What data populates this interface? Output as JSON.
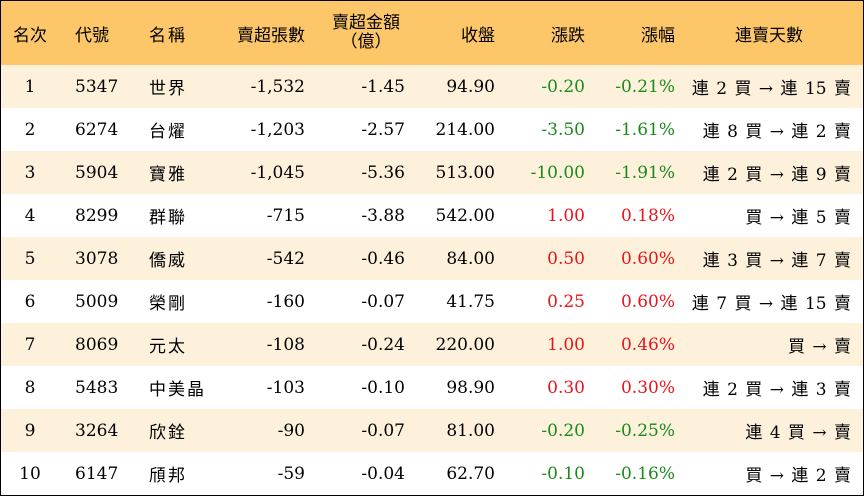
{
  "table": {
    "headers": {
      "rank": "名次",
      "code": "代號",
      "name": "名稱",
      "net_shares": "賣超張數",
      "net_amount_line1": "賣超金額",
      "net_amount_line2": "（億）",
      "close": "收盤",
      "change": "漲跌",
      "change_pct": "漲幅",
      "streak": "連賣天數"
    },
    "rows": [
      {
        "rank": "1",
        "code": "5347",
        "name": "世界",
        "net_shares": "-1,532",
        "net_amount": "-1.45",
        "close": "94.90",
        "change": "-0.20",
        "change_pct": "-0.21%",
        "trend": "neg",
        "streak": "連 2 買 → 連 15 賣"
      },
      {
        "rank": "2",
        "code": "6274",
        "name": "台燿",
        "net_shares": "-1,203",
        "net_amount": "-2.57",
        "close": "214.00",
        "change": "-3.50",
        "change_pct": "-1.61%",
        "trend": "neg",
        "streak": "連 8 買 → 連 2 賣"
      },
      {
        "rank": "3",
        "code": "5904",
        "name": "寶雅",
        "net_shares": "-1,045",
        "net_amount": "-5.36",
        "close": "513.00",
        "change": "-10.00",
        "change_pct": "-1.91%",
        "trend": "neg",
        "streak": "連 2 買 → 連 9 賣"
      },
      {
        "rank": "4",
        "code": "8299",
        "name": "群聯",
        "net_shares": "-715",
        "net_amount": "-3.88",
        "close": "542.00",
        "change": "1.00",
        "change_pct": "0.18%",
        "trend": "pos",
        "streak": "買 → 連 5 賣"
      },
      {
        "rank": "5",
        "code": "3078",
        "name": "僑威",
        "net_shares": "-542",
        "net_amount": "-0.46",
        "close": "84.00",
        "change": "0.50",
        "change_pct": "0.60%",
        "trend": "pos",
        "streak": "連 3 買 → 連 7 賣"
      },
      {
        "rank": "6",
        "code": "5009",
        "name": "榮剛",
        "net_shares": "-160",
        "net_amount": "-0.07",
        "close": "41.75",
        "change": "0.25",
        "change_pct": "0.60%",
        "trend": "pos",
        "streak": "連 7 買 → 連 15 賣"
      },
      {
        "rank": "7",
        "code": "8069",
        "name": "元太",
        "net_shares": "-108",
        "net_amount": "-0.24",
        "close": "220.00",
        "change": "1.00",
        "change_pct": "0.46%",
        "trend": "pos",
        "streak": "買 → 賣"
      },
      {
        "rank": "8",
        "code": "5483",
        "name": "中美晶",
        "net_shares": "-103",
        "net_amount": "-0.10",
        "close": "98.90",
        "change": "0.30",
        "change_pct": "0.30%",
        "trend": "pos",
        "streak": "連 2 買 → 連 3 賣"
      },
      {
        "rank": "9",
        "code": "3264",
        "name": "欣銓",
        "net_shares": "-90",
        "net_amount": "-0.07",
        "close": "81.00",
        "change": "-0.20",
        "change_pct": "-0.25%",
        "trend": "neg",
        "streak": "連 4 買 → 賣"
      },
      {
        "rank": "10",
        "code": "6147",
        "name": "頎邦",
        "net_shares": "-59",
        "net_amount": "-0.04",
        "close": "62.70",
        "change": "-0.10",
        "change_pct": "-0.16%",
        "trend": "neg",
        "streak": "買 → 連 2 賣"
      }
    ]
  },
  "colors": {
    "header_bg": "#fcc669",
    "odd_row_bg": "#fdf1dc",
    "even_row_bg": "#ffffff",
    "up": "#e8141c",
    "down": "#1a8a1a"
  }
}
